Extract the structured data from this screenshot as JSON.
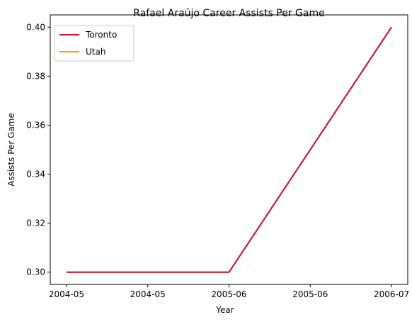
{
  "chart_data": {
    "type": "line",
    "title": "Rafael Araújo  Career Assists Per Game",
    "xlabel": "Year",
    "ylabel": "Assists Per Game",
    "x": [
      0,
      1,
      2
    ],
    "xtick_values": [
      0,
      0.5,
      1,
      1.5,
      2,
      2.5
    ],
    "xtick_labels": [
      "2004-05",
      "2004-05",
      "2005-06",
      "2005-06",
      "2006-07",
      "2006-07"
    ],
    "xlim": [
      -0.1,
      2.1
    ],
    "ylim": [
      0.295,
      0.405
    ],
    "yticks": [
      0.3,
      0.32,
      0.34,
      0.36,
      0.38,
      0.4
    ],
    "ytick_labels": [
      "0.30",
      "0.32",
      "0.34",
      "0.36",
      "0.38",
      "0.40"
    ],
    "series": [
      {
        "name": "Toronto",
        "x": [
          0,
          1,
          2
        ],
        "values": [
          0.3,
          0.3,
          0.4
        ],
        "color": "#c8102e"
      },
      {
        "name": "Utah",
        "x": [
          0,
          1,
          2
        ],
        "values": [
          0.3,
          0.3,
          0.4
        ],
        "color": "#f9a01b"
      }
    ],
    "draw_order": [
      "Utah",
      "Toronto"
    ],
    "legend_position": "upper-left",
    "grid": false
  }
}
